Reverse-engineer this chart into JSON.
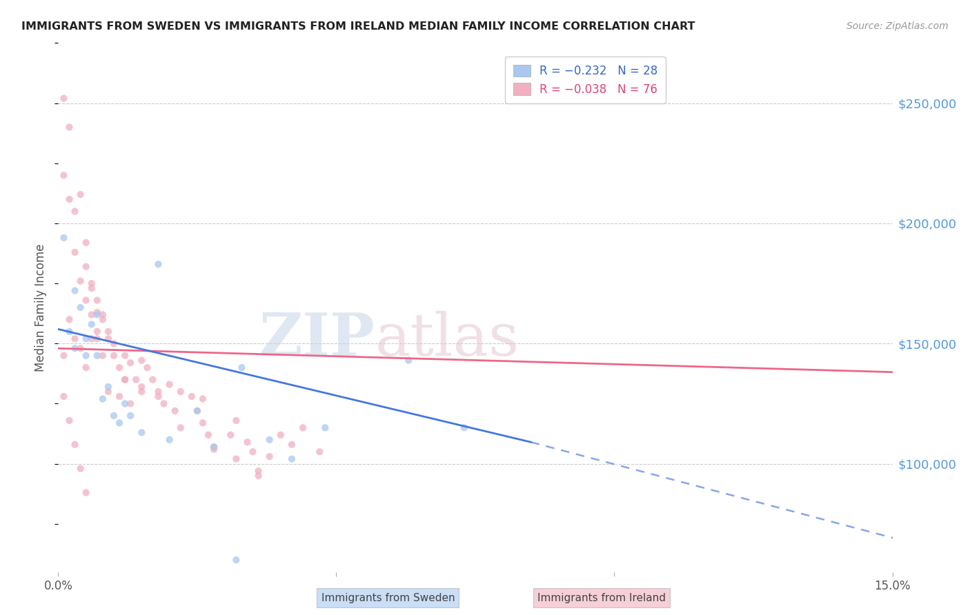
{
  "title": "IMMIGRANTS FROM SWEDEN VS IMMIGRANTS FROM IRELAND MEDIAN FAMILY INCOME CORRELATION CHART",
  "source": "Source: ZipAtlas.com",
  "ylabel": "Median Family Income",
  "xlim": [
    0.0,
    0.15
  ],
  "ylim": [
    55000,
    275000
  ],
  "yticks": [
    100000,
    150000,
    200000,
    250000
  ],
  "ytick_labels": [
    "$100,000",
    "$150,000",
    "$200,000",
    "$250,000"
  ],
  "sweden_color": "#a8c8f0",
  "ireland_color": "#f0b0c0",
  "trend_sweden_color": "#4477dd",
  "trend_ireland_color": "#ee6688",
  "background_color": "#ffffff",
  "trend_sw_x0": 0.0,
  "trend_sw_y0": 156000,
  "trend_sw_x1": 0.085,
  "trend_sw_y1": 109000,
  "trend_sw_dash_x1": 0.152,
  "trend_sw_dash_y1": 68000,
  "trend_ir_x0": 0.0,
  "trend_ir_y0": 148000,
  "trend_ir_x1": 0.152,
  "trend_ir_y1": 138000,
  "sweden_x": [
    0.001,
    0.002,
    0.003,
    0.003,
    0.004,
    0.005,
    0.005,
    0.006,
    0.007,
    0.007,
    0.008,
    0.009,
    0.01,
    0.011,
    0.012,
    0.013,
    0.015,
    0.018,
    0.02,
    0.025,
    0.028,
    0.033,
    0.038,
    0.042,
    0.048,
    0.063,
    0.073,
    0.032
  ],
  "sweden_y": [
    194000,
    155000,
    172000,
    148000,
    165000,
    152000,
    145000,
    158000,
    145000,
    162000,
    127000,
    132000,
    120000,
    117000,
    125000,
    120000,
    113000,
    183000,
    110000,
    122000,
    107000,
    140000,
    110000,
    102000,
    115000,
    143000,
    115000,
    60000
  ],
  "sweden_size": [
    55,
    55,
    55,
    55,
    55,
    55,
    55,
    55,
    55,
    55,
    55,
    55,
    55,
    55,
    55,
    55,
    55,
    55,
    55,
    55,
    55,
    55,
    55,
    55,
    55,
    55,
    55,
    55
  ],
  "ireland_x": [
    0.001,
    0.001,
    0.002,
    0.002,
    0.003,
    0.003,
    0.004,
    0.004,
    0.005,
    0.005,
    0.005,
    0.006,
    0.006,
    0.006,
    0.006,
    0.007,
    0.007,
    0.007,
    0.008,
    0.008,
    0.008,
    0.009,
    0.009,
    0.01,
    0.01,
    0.011,
    0.011,
    0.012,
    0.012,
    0.013,
    0.013,
    0.014,
    0.015,
    0.015,
    0.016,
    0.017,
    0.018,
    0.019,
    0.02,
    0.021,
    0.022,
    0.024,
    0.025,
    0.026,
    0.027,
    0.028,
    0.031,
    0.032,
    0.034,
    0.035,
    0.036,
    0.038,
    0.04,
    0.042,
    0.044,
    0.047,
    0.032,
    0.036,
    0.028,
    0.026,
    0.022,
    0.018,
    0.015,
    0.012,
    0.009,
    0.007,
    0.005,
    0.004,
    0.003,
    0.002,
    0.001,
    0.001,
    0.002,
    0.003,
    0.004,
    0.005
  ],
  "ireland_y": [
    252000,
    220000,
    240000,
    210000,
    205000,
    188000,
    176000,
    212000,
    192000,
    168000,
    182000,
    175000,
    162000,
    152000,
    173000,
    163000,
    152000,
    168000,
    160000,
    145000,
    162000,
    152000,
    155000,
    145000,
    150000,
    140000,
    128000,
    145000,
    135000,
    142000,
    125000,
    135000,
    143000,
    132000,
    140000,
    135000,
    130000,
    125000,
    133000,
    122000,
    115000,
    128000,
    122000,
    117000,
    112000,
    106000,
    112000,
    102000,
    109000,
    105000,
    97000,
    103000,
    112000,
    108000,
    115000,
    105000,
    118000,
    95000,
    107000,
    127000,
    130000,
    128000,
    130000,
    135000,
    130000,
    155000,
    140000,
    148000,
    152000,
    160000,
    145000,
    128000,
    118000,
    108000,
    98000,
    88000
  ],
  "ireland_size": [
    55,
    55,
    55,
    55,
    55,
    55,
    55,
    55,
    55,
    55,
    55,
    55,
    55,
    55,
    55,
    55,
    55,
    55,
    55,
    55,
    55,
    55,
    55,
    55,
    55,
    55,
    55,
    55,
    55,
    55,
    55,
    55,
    55,
    55,
    55,
    55,
    55,
    55,
    55,
    55,
    55,
    55,
    55,
    55,
    55,
    55,
    55,
    55,
    55,
    55,
    55,
    55,
    55,
    55,
    55,
    55,
    55,
    55,
    55,
    55,
    55,
    55,
    55,
    55,
    55,
    55,
    55,
    55,
    55,
    55,
    55,
    55,
    55,
    55,
    55,
    55
  ],
  "legend_sw_text": "R = −0.232   N = 28",
  "legend_ir_text": "R = −0.038   N = 76",
  "legend_sw_color": "#3366cc",
  "legend_ir_color": "#dd4477",
  "bottom_label_sw": "Immigrants from Sweden",
  "bottom_label_ir": "Immigrants from Ireland"
}
